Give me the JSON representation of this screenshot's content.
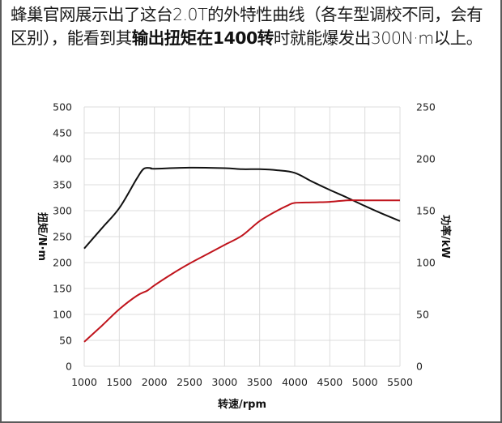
{
  "caption": {
    "part1": "蜂巢官网展示出了这台2.0T的外特性曲线（各车型调校不同，会有区别），能看到其",
    "bold": "输出扭矩在1400转",
    "part2": "时就能爆发出300N·m以上。"
  },
  "chart_data": {
    "type": "line",
    "title": "",
    "xlabel": "转速/rpm",
    "ylabel": "扭矩/N·m",
    "y2label": "功率/kW",
    "xlim": [
      1000,
      5500
    ],
    "ylim": [
      0,
      500
    ],
    "y2lim": [
      0,
      250
    ],
    "xticks": [
      1000,
      1500,
      2000,
      2500,
      3000,
      3500,
      4000,
      4500,
      5000,
      5500
    ],
    "yticks": [
      0,
      50,
      100,
      150,
      200,
      250,
      300,
      350,
      400,
      450,
      500
    ],
    "y2ticks": [
      0,
      50,
      100,
      150,
      200,
      250
    ],
    "grid": true,
    "legend": "none",
    "series": [
      {
        "name": "扭矩",
        "axis": "left",
        "color": "#111111",
        "x": [
          1000,
          1250,
          1500,
          1750,
          1850,
          1950,
          2000,
          2500,
          3000,
          3250,
          3500,
          3750,
          4000,
          4250,
          4500,
          4750,
          5000,
          5250,
          5500
        ],
        "values": [
          227,
          266,
          305,
          362,
          381,
          382,
          381,
          383,
          382,
          380,
          380,
          378,
          373,
          356,
          340,
          325,
          309,
          294,
          280
        ]
      },
      {
        "name": "功率",
        "axis": "right",
        "color": "#c0141c",
        "x": [
          1000,
          1250,
          1500,
          1750,
          1900,
          2000,
          2250,
          2500,
          2750,
          3000,
          3250,
          3500,
          3750,
          3900,
          4000,
          4250,
          4500,
          4750,
          5000,
          5250,
          5500
        ],
        "values": [
          23.5,
          39,
          55,
          68,
          73,
          78,
          89,
          99,
          108,
          117,
          126,
          140,
          150,
          155,
          157.5,
          158,
          158.5,
          160,
          160,
          160,
          160
        ]
      }
    ]
  }
}
